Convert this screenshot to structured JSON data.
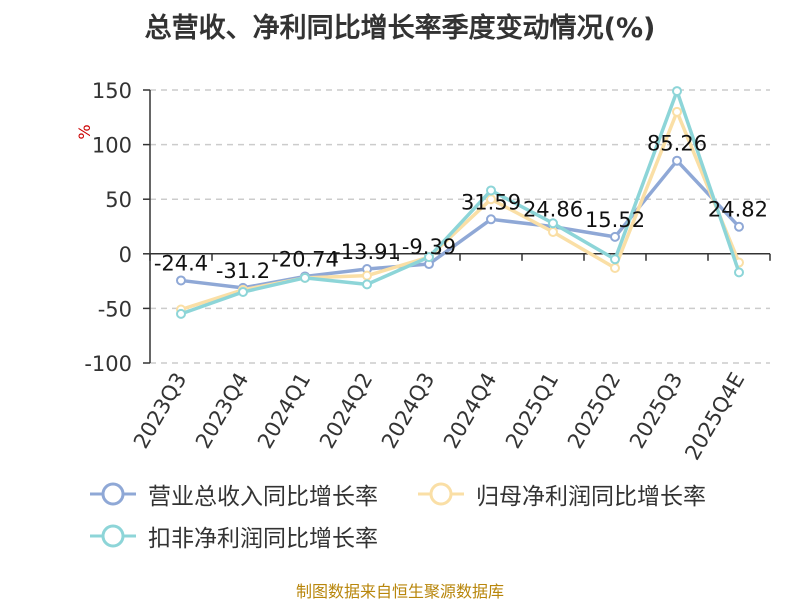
{
  "chart_data": {
    "type": "line",
    "title": "总营收、净利同比增长率季度变动情况(%)",
    "ylabel": "%",
    "xlabel": "",
    "ylim": [
      -100,
      150
    ],
    "yticks": [
      150,
      100,
      50,
      0,
      -50,
      -100
    ],
    "grid": true,
    "legend_position": "bottom",
    "categories": [
      "2023Q3",
      "2023Q4",
      "2024Q1",
      "2024Q2",
      "2024Q3",
      "2024Q4",
      "2025Q1",
      "2025Q2",
      "2025Q3",
      "2025Q4E"
    ],
    "series": [
      {
        "name": "营业总收入同比增长率",
        "color": "#8fa8d6",
        "values": [
          -24.4,
          -31.2,
          -20.74,
          -13.91,
          -9.39,
          31.59,
          24.86,
          15.52,
          85.26,
          24.82
        ],
        "labels": [
          "-24.4",
          "-31.2",
          "-20.74",
          "-13.91",
          "-9.39",
          "31.59",
          "24.86",
          "15.52",
          "85.26",
          "24.82"
        ]
      },
      {
        "name": "归母净利润同比增长率",
        "color": "#fadfa6",
        "values": [
          -51,
          -33,
          -22,
          -20,
          -3,
          50,
          20,
          -13,
          130,
          -8
        ]
      },
      {
        "name": "扣非净利润同比增长率",
        "color": "#8dd5d8",
        "values": [
          -55,
          -35,
          -22,
          -28,
          -3,
          58,
          28,
          -5,
          149,
          -17
        ]
      }
    ]
  },
  "source": "制图数据来自恒生聚源数据库"
}
